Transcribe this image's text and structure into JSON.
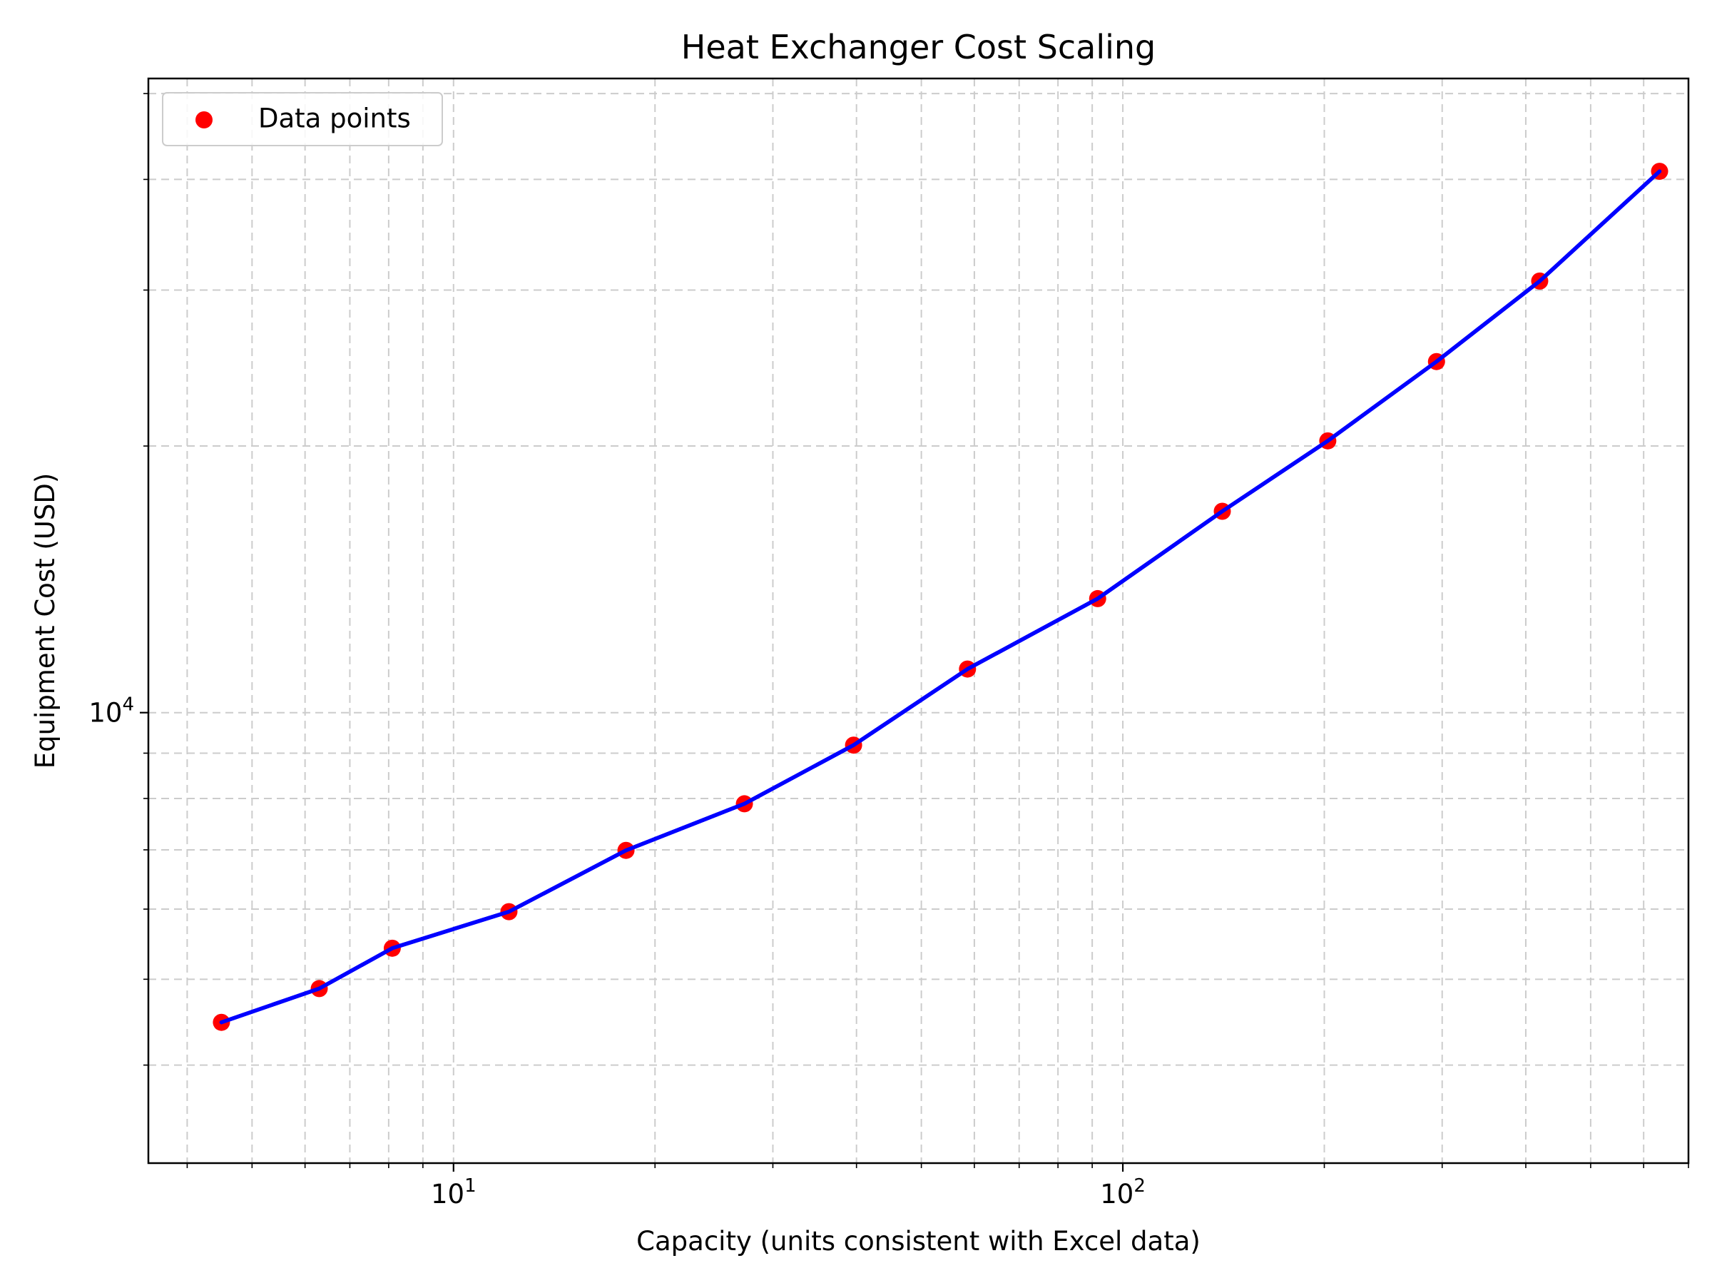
{
  "chart_data": {
    "type": "line",
    "title": "Heat Exchanger Cost Scaling",
    "xlabel": "Capacity (units consistent with Excel data)",
    "ylabel": "Equipment Cost (USD)",
    "xscale": "log",
    "yscale": "log",
    "xlim": [
      3.5,
      700
    ],
    "ylim": [
      3100,
      52000
    ],
    "grid": true,
    "grid_style": "dashed",
    "legend": {
      "placement": "top-left",
      "entries": [
        "Data points"
      ]
    },
    "x_ticks": [
      {
        "value": 10,
        "base": "10",
        "exp": "1"
      },
      {
        "value": 100,
        "base": "10",
        "exp": "2"
      }
    ],
    "y_ticks": [
      {
        "value": 10000,
        "base": "10",
        "exp": "4"
      }
    ],
    "series": [
      {
        "name": "Data points",
        "kind": "scatter",
        "color": "#ff0000",
        "x": [
          4.5,
          6.3,
          8.1,
          12.1,
          18.1,
          27.2,
          39.6,
          58.6,
          91.7,
          140.8,
          202.4,
          294.2,
          419.6,
          633.8
        ],
        "y": [
          4470,
          4880,
          5420,
          5960,
          6990,
          7890,
          9190,
          11200,
          13450,
          16880,
          20270,
          24910,
          30710,
          40850
        ]
      },
      {
        "kind": "line",
        "color": "#0000ff",
        "x": [
          4.5,
          6.3,
          8.1,
          12.1,
          18.1,
          27.2,
          39.6,
          58.6,
          91.7,
          140.8,
          202.4,
          294.2,
          419.6,
          633.8
        ],
        "y": [
          4470,
          4880,
          5420,
          5960,
          6990,
          7890,
          9190,
          11200,
          13450,
          16880,
          20270,
          24910,
          30710,
          40850
        ]
      }
    ]
  }
}
